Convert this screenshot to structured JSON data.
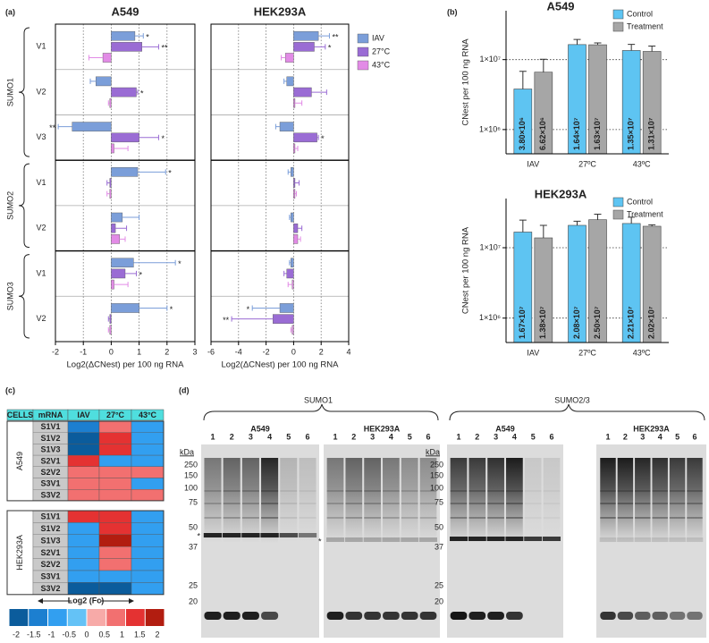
{
  "panel_labels": [
    "(a)",
    "(b)",
    "(c)",
    "(d)"
  ],
  "chart_data": [
    {
      "type": "hbar",
      "title": "A549",
      "groups": [
        {
          "name": "SUMO1",
          "categories": [
            "V1",
            "V2",
            "V3"
          ]
        },
        {
          "name": "SUMO2",
          "categories": [
            "V1",
            "V2"
          ]
        },
        {
          "name": "SUMO3",
          "categories": [
            "V1",
            "V2"
          ]
        }
      ],
      "series": [
        {
          "color": "#7b9ed9",
          "values": [
            0.85,
            -0.55,
            -1.4,
            0.95,
            0.4,
            0.8,
            1.0
          ],
          "errors": [
            0.3,
            0.2,
            0.5,
            1.0,
            0.6,
            1.5,
            1.0
          ],
          "annotations": [
            "*",
            null,
            "**",
            "*",
            null,
            "*",
            "*"
          ]
        },
        {
          "color": "#9a6cd4",
          "values": [
            1.1,
            0.9,
            1.0,
            -0.05,
            0.15,
            0.5,
            -0.05
          ],
          "errors": [
            0.6,
            0.05,
            0.7,
            0.1,
            0.4,
            0.4,
            0.05
          ],
          "annotations": [
            "**",
            "*",
            "*",
            null,
            null,
            "*",
            null
          ]
        },
        {
          "color": "#e28be6",
          "values": [
            -0.3,
            -0.05,
            0.1,
            -0.05,
            0.3,
            0.1,
            -0.05
          ],
          "errors": [
            0.5,
            0.05,
            0.5,
            0.1,
            0.2,
            0.5,
            0.05
          ],
          "annotations": [
            null,
            null,
            null,
            null,
            null,
            null,
            null
          ]
        }
      ],
      "xlim": [
        -2,
        3
      ],
      "xticks": [
        -2,
        -1,
        0,
        1,
        2,
        3
      ],
      "xlabel": "Log2(ΔCNest) per 100 ng RNA",
      "grid": true
    },
    {
      "type": "hbar",
      "title": "HEK293A",
      "series": [
        {
          "name": "IAV",
          "color": "#7b9ed9",
          "values": [
            1.8,
            -0.5,
            -1.0,
            -0.2,
            -0.2,
            -0.2,
            -1.0
          ],
          "errors": [
            0.8,
            0.2,
            0.3,
            0.2,
            0.1,
            0.1,
            2.0
          ],
          "annotations": [
            "**",
            null,
            null,
            null,
            null,
            null,
            "*"
          ]
        },
        {
          "name": "27°C",
          "color": "#9a6cd4",
          "values": [
            1.5,
            1.3,
            1.7,
            0.1,
            0.3,
            -0.5,
            -1.5
          ],
          "errors": [
            0.8,
            1.1,
            0.1,
            0.3,
            0.3,
            0.2,
            3.0
          ],
          "annotations": [
            "*",
            null,
            "*",
            null,
            null,
            null,
            "**"
          ]
        },
        {
          "name": "43°C",
          "color": "#e28be6",
          "values": [
            -0.6,
            0.1,
            0.1,
            0.1,
            0.3,
            -0.1,
            -0.1
          ],
          "errors": [
            0.3,
            0.5,
            0.2,
            0.1,
            0.2,
            0.3,
            0.1
          ],
          "annotations": [
            null,
            null,
            null,
            null,
            null,
            null,
            null
          ]
        }
      ],
      "xlim": [
        -6,
        4
      ],
      "xticks": [
        -6,
        -4,
        -2,
        0,
        2,
        4
      ],
      "xlabel": "Log2(ΔCNest) per 100 ng RNA",
      "grid": true,
      "legend": "outside right"
    },
    {
      "type": "logbar",
      "title": "A549",
      "categories": [
        "IAV",
        "27ºC",
        "43ºC"
      ],
      "series": [
        {
          "name": "Control",
          "color": "#5ec4f2",
          "values": [
            3800000,
            16400000,
            13500000
          ],
          "errors": [
            3000000,
            3000000,
            3000000
          ],
          "value_labels": [
            "3.80×10⁶",
            "1.64×10⁷",
            "1.35×10⁷"
          ]
        },
        {
          "name": "Treatment",
          "color": "#a6a6a6",
          "values": [
            6620000,
            16300000,
            13100000
          ],
          "errors": [
            3500000,
            1000000,
            2500000
          ],
          "value_labels": [
            "6.62×10⁶",
            "1.63×10⁷",
            "1.31×10⁷"
          ]
        }
      ],
      "ylabel": "CNest per 100 ng RNA",
      "log_scale": true,
      "ylim": [
        450000,
        50000000
      ],
      "yticks": [
        {
          "value": 1000000,
          "label": "1×10⁶"
        },
        {
          "value": 10000000,
          "label": "1×10⁷"
        }
      ],
      "grid": true,
      "legend": "upper right"
    },
    {
      "type": "logbar",
      "title": "HEK293A",
      "categories": [
        "IAV",
        "27ºC",
        "43ºC"
      ],
      "series": [
        {
          "name": "Control",
          "color": "#5ec4f2",
          "values": [
            16700000,
            20800000,
            22100000
          ],
          "errors": [
            8000000,
            3000000,
            5000000
          ],
          "value_labels": [
            "1.67×10⁷",
            "2.08×10⁷",
            "2.21×10⁷"
          ]
        },
        {
          "name": "Treatment",
          "color": "#a6a6a6",
          "values": [
            13800000,
            25000000,
            20200000
          ],
          "errors": [
            7000000,
            5000000,
            1000000
          ],
          "value_labels": [
            "1.38×10⁷",
            "2.50×10⁷",
            "2.02×10⁷"
          ]
        }
      ],
      "ylabel": "CNest per 100 ng RNA",
      "log_scale": true,
      "ylim": [
        450000,
        50000000
      ],
      "yticks": [
        {
          "value": 1000000,
          "label": "1×10⁶"
        },
        {
          "value": 10000000,
          "label": "1×10⁷"
        }
      ],
      "grid": true,
      "legend": "upper right"
    },
    {
      "type": "heatmap",
      "header": [
        "CELLS",
        "mRNA",
        "IAV",
        "27°C",
        "43°C"
      ],
      "row_groups": [
        {
          "name": "A549",
          "rows": [
            "S1V1",
            "S1V2",
            "S1V3",
            "S2V1",
            "S2V2",
            "S3V1",
            "S3V2"
          ],
          "values": [
            [
              -1.2,
              0.8,
              -0.6
            ],
            [
              -1.6,
              1.2,
              -0.6
            ],
            [
              -1.6,
              1.3,
              -0.6
            ],
            [
              1.1,
              -0.6,
              -0.6
            ],
            [
              0.8,
              0.7,
              0.7
            ],
            [
              0.8,
              0.7,
              -0.6
            ],
            [
              0.8,
              0.7,
              0.7
            ]
          ]
        },
        {
          "name": "HEK293A",
          "rows": [
            "S1V1",
            "S1V2",
            "S1V3",
            "S2V1",
            "S2V2",
            "S3V1",
            "S3V2"
          ],
          "values": [
            [
              1.3,
              1.4,
              -0.6
            ],
            [
              -0.7,
              1.2,
              -0.7
            ],
            [
              -0.6,
              1.8,
              -0.6
            ],
            [
              -0.6,
              0.7,
              -0.6
            ],
            [
              -0.6,
              0.8,
              -0.6
            ],
            [
              -0.6,
              -0.8,
              -0.6
            ],
            [
              -1.6,
              -1.7,
              -0.6
            ]
          ]
        }
      ],
      "colorbar": {
        "label": "Log2 (Fc)",
        "ticks": [
          -2,
          -1.5,
          -1,
          -0.5,
          0,
          0.5,
          1,
          1.5,
          2
        ],
        "colors": [
          "#0b5c9c",
          "#1c7fd0",
          "#329ff0",
          "#64c2f6",
          "#f7aaa8",
          "#f27070",
          "#e43232",
          "#b21d10"
        ]
      }
    }
  ],
  "blots": {
    "panels": [
      {
        "title": "SUMO1",
        "cells": [
          {
            "name": "A549",
            "lanes": [
              1,
              2,
              3,
              4,
              5,
              6
            ]
          },
          {
            "name": "HEK293A",
            "lanes": [
              1,
              2,
              3,
              4,
              5,
              6
            ]
          }
        ]
      },
      {
        "title": "SUMO2/3",
        "cells": [
          {
            "name": "A549",
            "lanes": [
              1,
              2,
              3,
              4,
              5,
              6
            ]
          },
          {
            "name": "HEK293A",
            "lanes": [
              1,
              2,
              3,
              4,
              5,
              6
            ]
          }
        ]
      }
    ],
    "marker_unit": "kDa",
    "markers": [
      250,
      150,
      100,
      75,
      50,
      37,
      25,
      20
    ],
    "asterisks": [
      "*",
      "*"
    ]
  }
}
